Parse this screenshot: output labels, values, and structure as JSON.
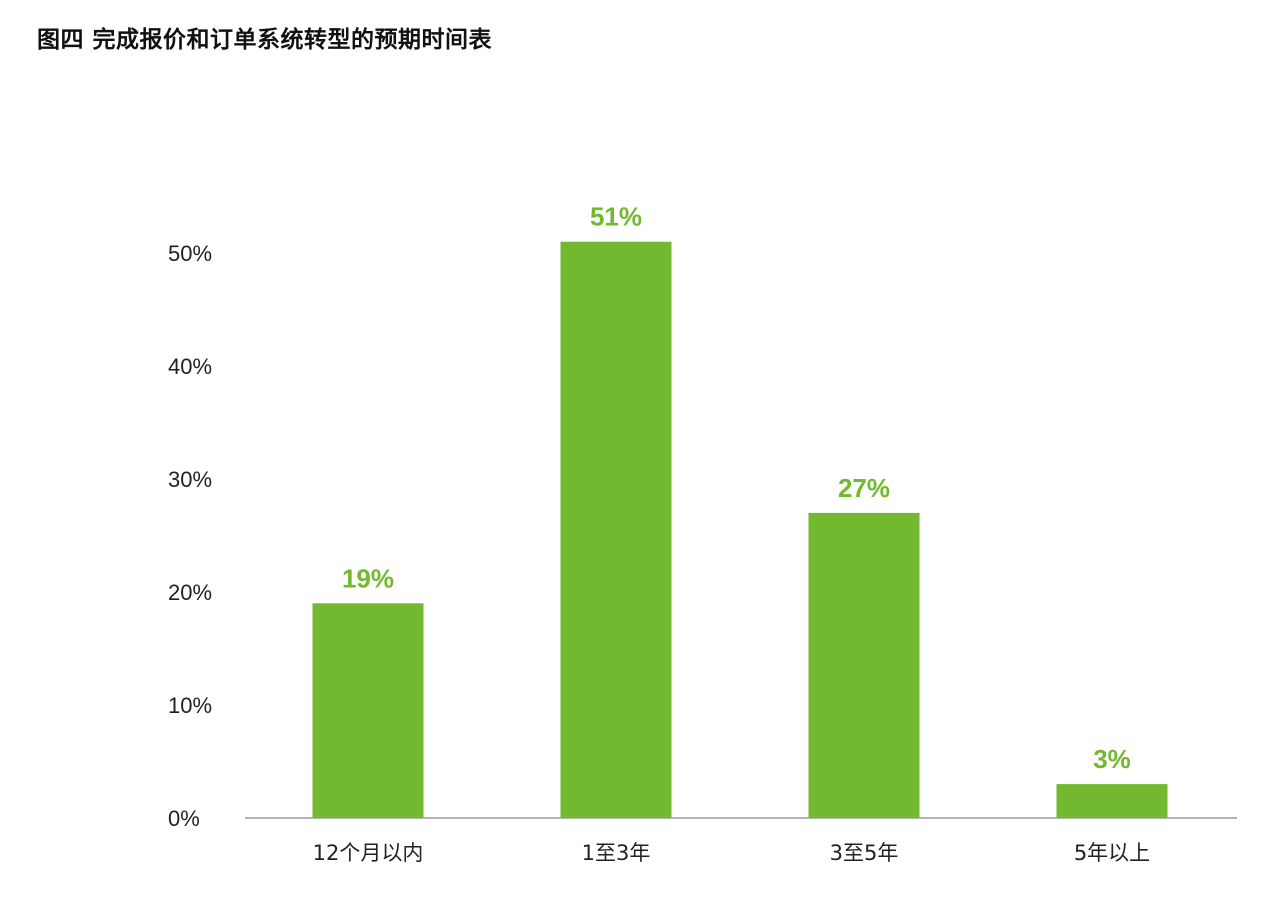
{
  "chart_data": {
    "type": "bar",
    "title": "图四 完成报价和订单系统转型的预期时间表",
    "categories": [
      "12个月以内",
      "1至3年",
      "3至5年",
      "5年以上"
    ],
    "values": [
      19,
      51,
      27,
      3
    ],
    "data_labels": [
      "19%",
      "51%",
      "27%",
      "3%"
    ],
    "yticks": [
      0,
      10,
      20,
      30,
      40,
      50
    ],
    "ytick_labels": [
      "0%",
      "10%",
      "20%",
      "30%",
      "40%",
      "50%"
    ],
    "ylim": [
      0,
      50
    ],
    "xlabel": "",
    "ylabel": "",
    "grid": false,
    "legend": "none",
    "colors": {
      "bar": "#72b92f",
      "label": "#72b92f",
      "axis": "#9a9a9a"
    }
  }
}
